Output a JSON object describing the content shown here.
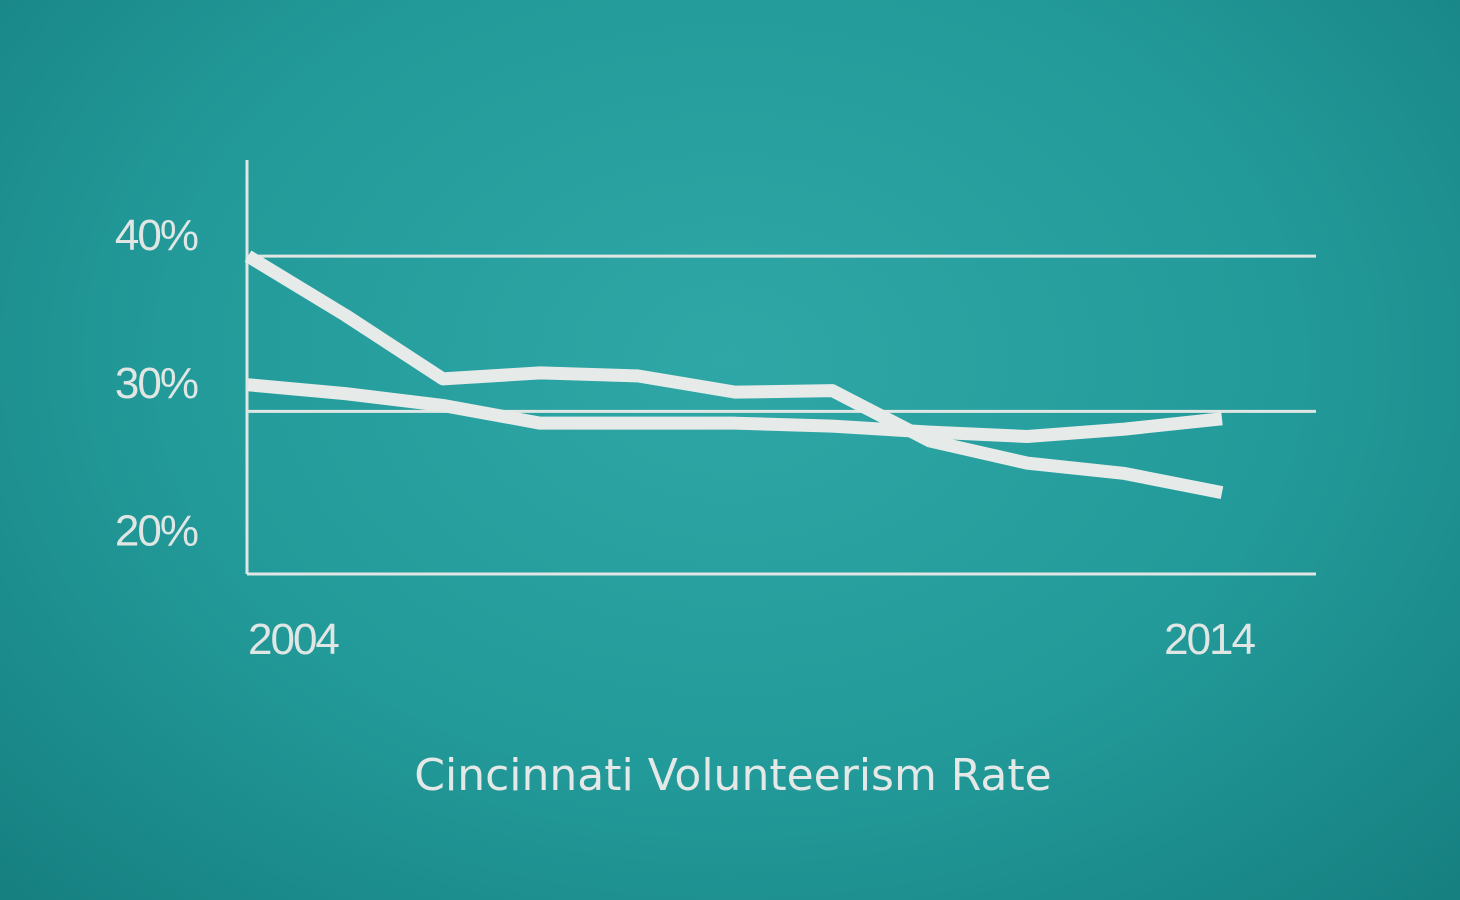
{
  "chart_data": {
    "type": "line",
    "title": "Cincinnati Volunteerism Rate",
    "xlabel": "",
    "ylabel": "",
    "x_tick_labels": [
      "2004",
      "2014"
    ],
    "y_tick_labels": [
      "40%",
      "30%",
      "20%"
    ],
    "y_ticks": [
      40,
      30,
      20
    ],
    "xlim": [
      2004,
      2015
    ],
    "ylim": [
      17,
      45
    ],
    "reference_lines": [
      38.5,
      28
    ],
    "grid": false,
    "legend": "none",
    "x": [
      2004,
      2005,
      2006,
      2007,
      2008,
      2009,
      2010,
      2011,
      2012,
      2013,
      2014
    ],
    "series": [
      {
        "values": [
          38.5,
          34.5,
          30.2,
          30.6,
          30.4,
          29.3,
          29.4,
          26.0,
          24.5,
          23.8,
          22.5
        ]
      },
      {
        "values": [
          29.8,
          29.2,
          28.4,
          27.2,
          27.2,
          27.2,
          27.0,
          26.6,
          26.3,
          26.8,
          27.5
        ]
      }
    ],
    "colors": {
      "background": "#229a99",
      "ink": "#dfe6e4"
    }
  }
}
